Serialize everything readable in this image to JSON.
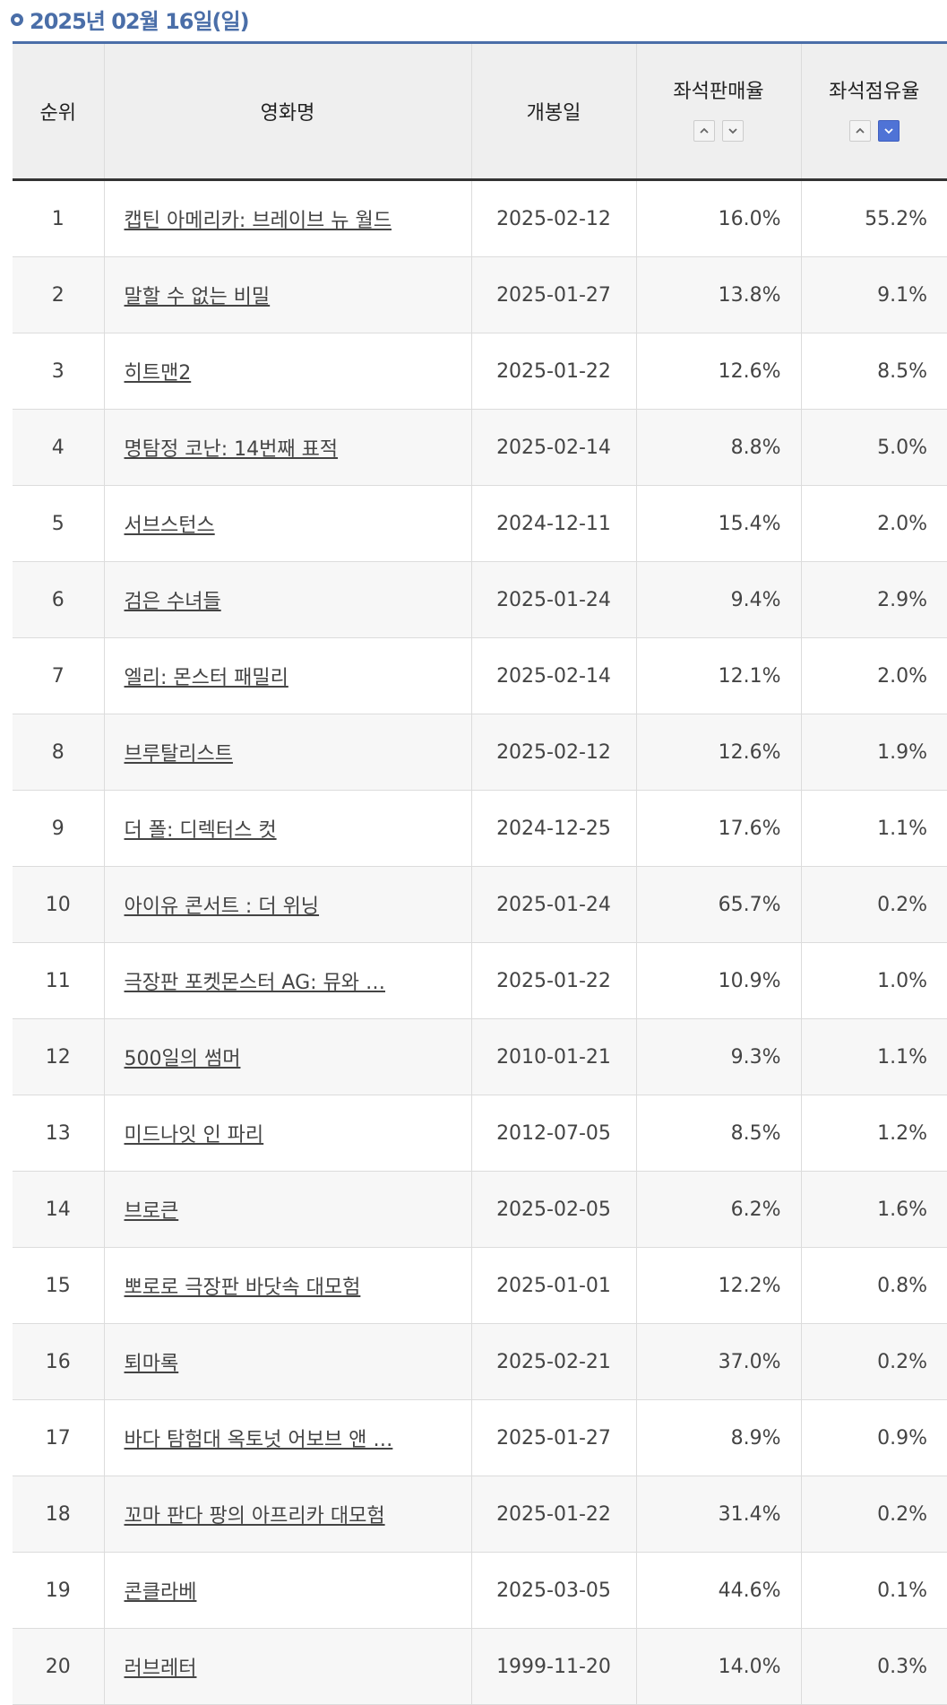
{
  "date_header": "2025년 02월 16일(일)",
  "columns": {
    "rank": "순위",
    "title": "영화명",
    "release": "개봉일",
    "sales_rate": "좌석판매율",
    "share_rate": "좌석점유율"
  },
  "sort": {
    "active_column": "share_rate",
    "active_direction": "down",
    "active_color": "#4f73d6"
  },
  "rows": [
    {
      "rank": "1",
      "title": "캡틴 아메리카: 브레이브 뉴 월드",
      "release": "2025-02-12",
      "sales": "16.0%",
      "share": "55.2%"
    },
    {
      "rank": "2",
      "title": "말할 수 없는 비밀",
      "release": "2025-01-27",
      "sales": "13.8%",
      "share": "9.1%"
    },
    {
      "rank": "3",
      "title": "히트맨2",
      "release": "2025-01-22",
      "sales": "12.6%",
      "share": "8.5%"
    },
    {
      "rank": "4",
      "title": "명탐정 코난: 14번째 표적",
      "release": "2025-02-14",
      "sales": "8.8%",
      "share": "5.0%"
    },
    {
      "rank": "5",
      "title": "서브스턴스",
      "release": "2024-12-11",
      "sales": "15.4%",
      "share": "2.0%"
    },
    {
      "rank": "6",
      "title": "검은 수녀들",
      "release": "2025-01-24",
      "sales": "9.4%",
      "share": "2.9%"
    },
    {
      "rank": "7",
      "title": "엘리: 몬스터 패밀리",
      "release": "2025-02-14",
      "sales": "12.1%",
      "share": "2.0%"
    },
    {
      "rank": "8",
      "title": "브루탈리스트",
      "release": "2025-02-12",
      "sales": "12.6%",
      "share": "1.9%"
    },
    {
      "rank": "9",
      "title": "더 폴: 디렉터스 컷",
      "release": "2024-12-25",
      "sales": "17.6%",
      "share": "1.1%"
    },
    {
      "rank": "10",
      "title": "아이유 콘서트 : 더 위닝",
      "release": "2025-01-24",
      "sales": "65.7%",
      "share": "0.2%"
    },
    {
      "rank": "11",
      "title": "극장판 포켓몬스터 AG: 뮤와 …",
      "release": "2025-01-22",
      "sales": "10.9%",
      "share": "1.0%"
    },
    {
      "rank": "12",
      "title": "500일의 썸머",
      "release": "2010-01-21",
      "sales": "9.3%",
      "share": "1.1%"
    },
    {
      "rank": "13",
      "title": "미드나잇 인 파리",
      "release": "2012-07-05",
      "sales": "8.5%",
      "share": "1.2%"
    },
    {
      "rank": "14",
      "title": "브로큰",
      "release": "2025-02-05",
      "sales": "6.2%",
      "share": "1.6%"
    },
    {
      "rank": "15",
      "title": "뽀로로 극장판 바닷속 대모험",
      "release": "2025-01-01",
      "sales": "12.2%",
      "share": "0.8%"
    },
    {
      "rank": "16",
      "title": "퇴마록",
      "release": "2025-02-21",
      "sales": "37.0%",
      "share": "0.2%"
    },
    {
      "rank": "17",
      "title": "바다 탐험대 옥토넛 어보브 앤 …",
      "release": "2025-01-27",
      "sales": "8.9%",
      "share": "0.9%"
    },
    {
      "rank": "18",
      "title": "꼬마 판다 팡의 아프리카 대모험",
      "release": "2025-01-22",
      "sales": "31.4%",
      "share": "0.2%"
    },
    {
      "rank": "19",
      "title": "콘클라베",
      "release": "2025-03-05",
      "sales": "44.6%",
      "share": "0.1%"
    },
    {
      "rank": "20",
      "title": "러브레터",
      "release": "1999-11-20",
      "sales": "14.0%",
      "share": "0.3%"
    }
  ]
}
